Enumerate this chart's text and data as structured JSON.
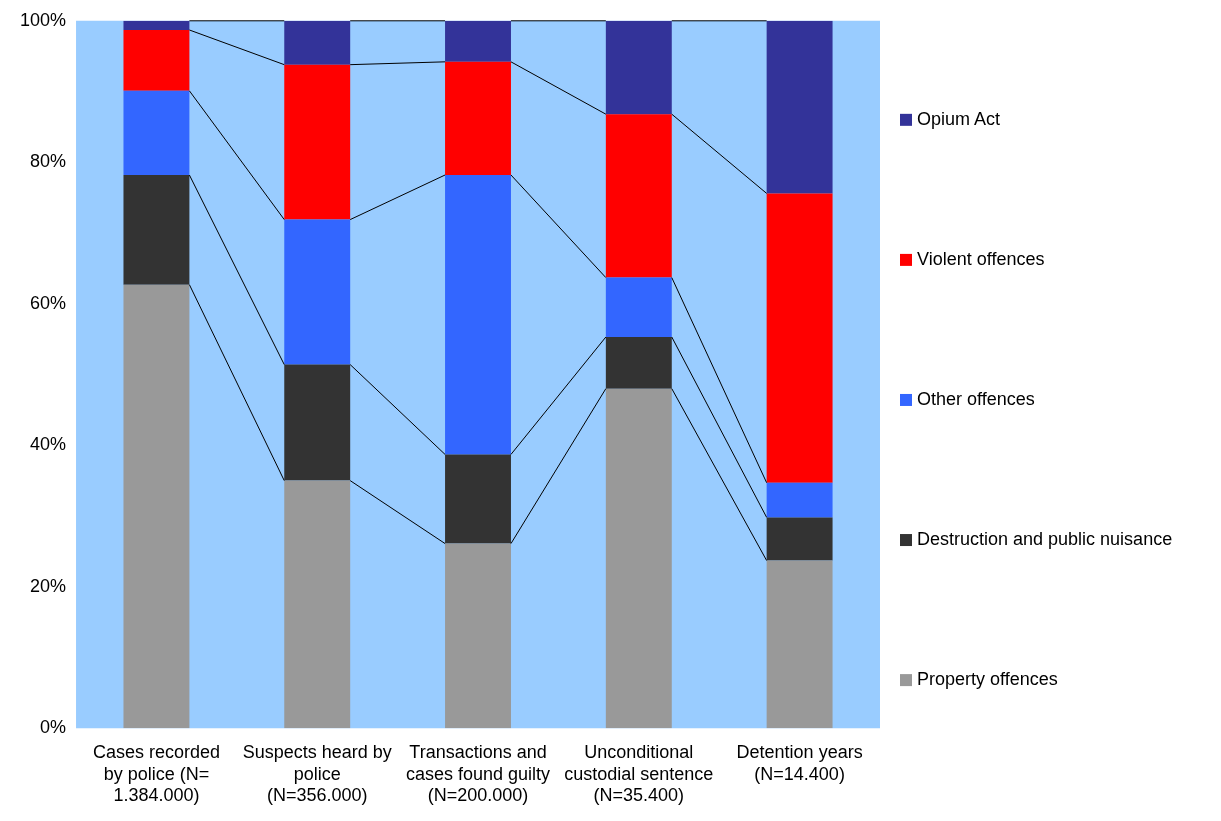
{
  "chart_data": {
    "type": "bar",
    "stacked": true,
    "legend": "right",
    "grid": false,
    "categories": [
      "Cases recorded by police (N= 1.384.000)",
      "Suspects heard by police (N=356.000)",
      "Transactions and cases found guilty (N=200.000)",
      "Unconditional custodial sentence (N=35.400)",
      "Detention years (N=14.400)"
    ],
    "ylim": [
      0,
      100
    ],
    "yticks": [
      {
        "value": 0,
        "label": "0%"
      },
      {
        "value": 20,
        "label": "20%"
      },
      {
        "value": 40,
        "label": "40%"
      },
      {
        "value": 60,
        "label": "60%"
      },
      {
        "value": 80,
        "label": "80%"
      },
      {
        "value": 100,
        "label": "100%"
      }
    ],
    "series": [
      {
        "name": "Property offences",
        "color": "#999999",
        "values": [
          62.7,
          35.0,
          26.1,
          48.0,
          23.7
        ]
      },
      {
        "name": "Destruction and public nuisance",
        "color": "#333333",
        "values": [
          15.5,
          16.4,
          12.6,
          7.3,
          6.1
        ]
      },
      {
        "name": "Other offences",
        "color": "#3366ff",
        "values": [
          11.9,
          20.5,
          39.5,
          8.4,
          4.9
        ]
      },
      {
        "name": "Violent offences",
        "color": "#ff0000",
        "values": [
          8.6,
          21.9,
          16.0,
          23.1,
          40.9
        ]
      },
      {
        "name": "Opium Act",
        "color": "#333399",
        "values": [
          1.3,
          6.2,
          5.8,
          13.2,
          24.4
        ]
      }
    ]
  }
}
